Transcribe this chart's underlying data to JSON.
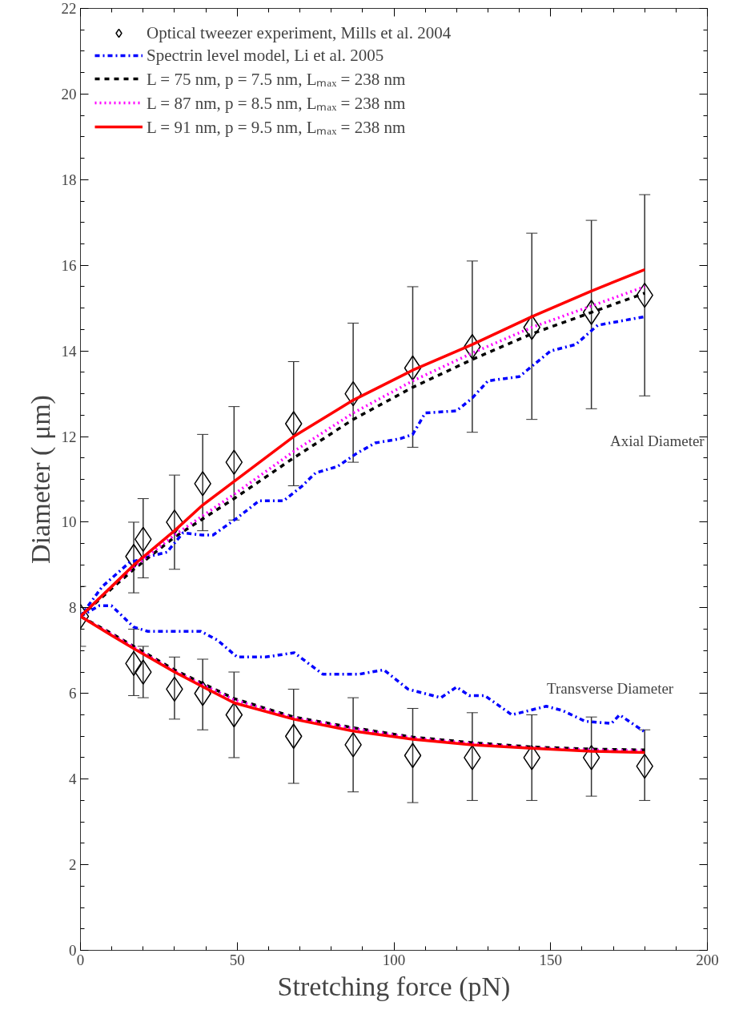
{
  "chart_data": {
    "type": "line",
    "xlabel": "Stretching force (pN)",
    "ylabel": "Diameter ( μm)",
    "xlim": [
      0,
      200
    ],
    "ylim": [
      0,
      22
    ],
    "xticks": [
      0,
      50,
      100,
      150,
      200
    ],
    "yticks": [
      0,
      2,
      4,
      6,
      8,
      10,
      12,
      14,
      16,
      18,
      20,
      22
    ],
    "grid": false,
    "legend": "top left",
    "annotations": [
      "Axial Diameter",
      "Transverse Diameter"
    ],
    "series": [
      {
        "name": "Optical tweezer experiment, Mills et al. 2004",
        "type": "scatter",
        "marker": "diamond",
        "color": "#000000",
        "x": [
          0,
          17,
          20,
          30,
          39,
          49,
          68,
          87,
          106,
          125,
          144,
          163,
          180
        ],
        "values": [
          7.8,
          9.2,
          9.6,
          10.0,
          10.9,
          11.4,
          12.3,
          13.0,
          13.6,
          14.1,
          14.55,
          14.9,
          15.3
        ],
        "errors": [
          [
            7.1,
            8.5
          ],
          [
            8.35,
            10.0
          ],
          [
            8.7,
            10.55
          ],
          [
            8.9,
            11.1
          ],
          [
            9.8,
            12.05
          ],
          [
            10.05,
            12.7
          ],
          [
            10.85,
            13.75
          ],
          [
            11.4,
            14.65
          ],
          [
            11.75,
            15.5
          ],
          [
            12.1,
            16.1
          ],
          [
            12.4,
            16.75
          ],
          [
            12.65,
            17.05
          ],
          [
            12.95,
            17.65
          ]
        ]
      },
      {
        "type": "scatter",
        "marker": "diamond",
        "color": "#000000",
        "x": [
          17,
          20,
          30,
          39,
          49,
          68,
          87,
          106,
          125,
          144,
          163,
          180
        ],
        "values": [
          6.7,
          6.5,
          6.1,
          6.0,
          5.5,
          5.0,
          4.8,
          4.55,
          4.5,
          4.5,
          4.5,
          4.3
        ],
        "errors": [
          [
            5.95,
            7.5
          ],
          [
            5.9,
            7.1
          ],
          [
            5.4,
            6.85
          ],
          [
            5.15,
            6.8
          ],
          [
            4.5,
            6.5
          ],
          [
            3.9,
            6.1
          ],
          [
            3.7,
            5.9
          ],
          [
            3.45,
            5.65
          ],
          [
            3.5,
            5.55
          ],
          [
            3.5,
            5.5
          ],
          [
            3.6,
            5.45
          ],
          [
            3.5,
            5.15
          ]
        ]
      },
      {
        "name": "Spectrin level model, Li et al. 2005",
        "line_style": "dashdot",
        "color": "#0000ff",
        "x": [
          0,
          7,
          15.5,
          22,
          27.6,
          32.7,
          38.8,
          42.3,
          50,
          57,
          64.8,
          70.8,
          75,
          82,
          88,
          94,
          102,
          106,
          110,
          120,
          125,
          130,
          140,
          145,
          150,
          158,
          165,
          180
        ],
        "values": [
          7.8,
          8.5,
          9.05,
          9.2,
          9.3,
          9.75,
          9.7,
          9.7,
          10.1,
          10.5,
          10.5,
          10.85,
          11.15,
          11.3,
          11.6,
          11.85,
          11.95,
          12.05,
          12.55,
          12.6,
          12.9,
          13.3,
          13.4,
          13.7,
          14.0,
          14.15,
          14.6,
          14.8
        ]
      },
      {
        "line_style": "dashdot",
        "color": "#0000ff",
        "x": [
          0,
          6,
          9.9,
          17,
          21.5,
          38.4,
          43.6,
          50,
          59,
          68.2,
          77.3,
          89,
          96.8,
          104.5,
          115,
          120,
          124,
          129,
          137.6,
          148.6,
          153.8,
          161,
          169.4,
          172,
          180
        ],
        "values": [
          7.8,
          8.05,
          8.05,
          7.55,
          7.45,
          7.45,
          7.25,
          6.85,
          6.85,
          6.95,
          6.45,
          6.45,
          6.55,
          6.1,
          5.9,
          6.15,
          5.95,
          5.95,
          5.5,
          5.7,
          5.6,
          5.35,
          5.3,
          5.5,
          5.1
        ]
      },
      {
        "name": "L = 75 nm, p = 7.5 nm, Lₘₐₓ = 238 nm",
        "line_style": "dashed",
        "color": "#000000",
        "x": [
          0,
          10,
          17,
          30,
          49,
          68,
          87,
          106,
          125,
          144,
          163,
          180
        ],
        "values": [
          7.8,
          8.45,
          8.9,
          9.65,
          10.55,
          11.5,
          12.4,
          13.15,
          13.8,
          14.4,
          14.9,
          15.35
        ]
      },
      {
        "line_style": "dashed",
        "color": "#000000",
        "x": [
          0,
          10,
          17,
          30,
          49,
          68,
          87,
          106,
          125,
          144,
          163,
          180
        ],
        "values": [
          7.8,
          7.4,
          7.1,
          6.55,
          5.88,
          5.45,
          5.2,
          4.98,
          4.85,
          4.75,
          4.7,
          4.68
        ]
      },
      {
        "name": "L = 87 nm, p = 8.5 nm, Lₘₐₓ = 238 nm",
        "line_style": "dotted",
        "color": "#ff00ff",
        "x": [
          0,
          10,
          17,
          30,
          49,
          68,
          87,
          106,
          125,
          144,
          163,
          180
        ],
        "values": [
          7.8,
          8.5,
          8.95,
          9.7,
          10.65,
          11.65,
          12.55,
          13.3,
          13.95,
          14.55,
          15.05,
          15.5
        ]
      },
      {
        "line_style": "dotted",
        "color": "#ff00ff",
        "x": [
          0,
          10,
          17,
          30,
          49,
          68,
          87,
          106,
          125,
          144,
          163,
          180
        ],
        "values": [
          7.8,
          7.38,
          7.08,
          6.52,
          5.85,
          5.43,
          5.18,
          4.96,
          4.83,
          4.73,
          4.68,
          4.66
        ]
      },
      {
        "name": "L = 91 nm, p = 9.5 nm, Lₘₐₓ = 238 nm",
        "line_style": "solid",
        "color": "#ff0000",
        "x": [
          0,
          10,
          17,
          30,
          39,
          49,
          68,
          87,
          106,
          125,
          144,
          163,
          180
        ],
        "values": [
          7.8,
          8.5,
          9.0,
          9.8,
          10.4,
          10.95,
          12.0,
          12.85,
          13.55,
          14.15,
          14.8,
          15.4,
          15.9
        ]
      },
      {
        "line_style": "solid",
        "color": "#ff0000",
        "x": [
          0,
          10,
          17,
          30,
          49,
          68,
          87,
          106,
          125,
          144,
          163,
          180
        ],
        "values": [
          7.8,
          7.35,
          7.05,
          6.5,
          5.78,
          5.4,
          5.12,
          4.93,
          4.8,
          4.72,
          4.65,
          4.62
        ]
      }
    ]
  }
}
